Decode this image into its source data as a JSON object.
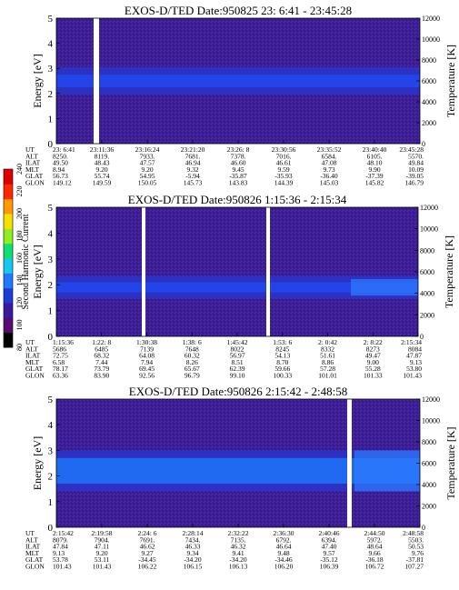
{
  "figure": {
    "colorbar": {
      "label": "Second Harmonic Current",
      "ticks": [
        "80",
        "100",
        "120",
        "140",
        "160",
        "180",
        "200",
        "220",
        "240"
      ],
      "colors": [
        "#000000",
        "#5a0c6e",
        "#3a1aa0",
        "#1f3cd8",
        "#1f78ff",
        "#18c8f0",
        "#10e070",
        "#90ee20",
        "#f6e000",
        "#ff9a00",
        "#ff2800",
        "#e00000"
      ]
    }
  },
  "chart_data": [
    {
      "type": "heatmap",
      "title": "EXOS-D/TED   Date:950825  23: 6:41 - 23:45:28",
      "ylabel": "Energy [eV]",
      "y2label": "Temperature [K]",
      "ylim": [
        0,
        5
      ],
      "y2lim": [
        0,
        12000
      ],
      "yticks": [
        "0",
        "1",
        "2",
        "3",
        "4",
        "5"
      ],
      "y2ticks": [
        "0",
        "2000",
        "4000",
        "6000",
        "8000",
        "10000",
        "12000"
      ],
      "band": {
        "center_eV": 2.5,
        "strong_halfwidth_eV": 0.25,
        "weak_halfwidth_eV": 0.55
      },
      "gaps": [
        {
          "start_frac": 0.0,
          "end_frac": 0.0
        }
      ],
      "table_labels": [
        "UT",
        "ALT",
        "ILAT",
        "MLT",
        "GLAT",
        "GLON"
      ],
      "table_columns": [
        [
          "23: 6:41",
          "8250.",
          "49.50",
          "8.94",
          "56.73",
          "149.12"
        ],
        [
          "23:11:36",
          "8119.",
          "48.43",
          "9.20",
          "55.74",
          "149.59"
        ],
        [
          "23:16:24",
          "7933.",
          "47.57",
          "9.20",
          "54.95",
          "150.05"
        ],
        [
          "23:21:20",
          "7681.",
          "46.94",
          "9.32",
          "-5.94",
          "145.73"
        ],
        [
          "23:26: 8",
          "7378.",
          "46.60",
          "9.45",
          "-35.87",
          "143.83"
        ],
        [
          "23:30:56",
          "7016.",
          "46.61",
          "9.59",
          "-35.93",
          "144.39"
        ],
        [
          "23:35:52",
          "6584.",
          "47.08",
          "9.73",
          "-36.40",
          "145.03"
        ],
        [
          "23:40:40",
          "6105.",
          "48.10",
          "9.90",
          "-37.39",
          "145.82"
        ],
        [
          "23:45:28",
          "5570.",
          "49.84",
          "10.09",
          "-39.05",
          "146.79"
        ]
      ]
    },
    {
      "type": "heatmap",
      "title": "EXOS-D/TED   Date:950826   1:15:36 - 2:15:34",
      "ylabel": "Energy [eV]",
      "y2label": "Temperature [K]",
      "ylim": [
        0,
        5
      ],
      "y2lim": [
        0,
        12000
      ],
      "yticks": [
        "0",
        "1",
        "2",
        "3",
        "4",
        "5"
      ],
      "y2ticks": [
        "0",
        "2000",
        "4000",
        "6000",
        "8000",
        "10000",
        "12000"
      ],
      "band": {
        "center_eV": 1.9,
        "strong_halfwidth_eV": 0.2,
        "weak_halfwidth_eV": 0.45
      },
      "table_labels": [
        "UT",
        "ALT",
        "ILAT",
        "MLT",
        "GLAT",
        "GLON"
      ],
      "table_columns": [
        [
          "1:15:36",
          "5686",
          "72.75",
          "6.58",
          "78.17",
          "63.36"
        ],
        [
          "1:22: 8",
          "6485",
          "68.32",
          "7.44",
          "73.79",
          "83.90"
        ],
        [
          "1:30:38",
          "7139",
          "64.08",
          "7.94",
          "69.45",
          "92.56"
        ],
        [
          "1:38: 6",
          "7648",
          "60.32",
          "8.26",
          "65.67",
          "96.79"
        ],
        [
          "1:45:42",
          "8022",
          "56.97",
          "8.51",
          "62.39",
          "99.10"
        ],
        [
          "1:53: 6",
          "8245",
          "54.13",
          "8.70",
          "59.66",
          "100.33"
        ],
        [
          "2: 0:42",
          "8332",
          "51.61",
          "8.86",
          "57.28",
          "101.01"
        ],
        [
          "2: 8:22",
          "8273",
          "49.47",
          "9.00",
          "55.28",
          "101.33"
        ],
        [
          "2:15:34",
          "8084",
          "47.87",
          "9.13",
          "53.80",
          "101.43"
        ]
      ]
    },
    {
      "type": "heatmap",
      "title": "EXOS-D/TED   Date:950826   2:15:42 - 2:48:58",
      "ylabel": "Energy [eV]",
      "y2label": "Temperature [K]",
      "ylim": [
        0,
        5
      ],
      "y2lim": [
        0,
        12000
      ],
      "yticks": [
        "0",
        "1",
        "2",
        "3",
        "4",
        "5"
      ],
      "y2ticks": [
        "0",
        "2000",
        "4000",
        "6000",
        "8000",
        "10000",
        "12000"
      ],
      "band": {
        "center_eV": 2.2,
        "strong_halfwidth_eV": 0.5,
        "weak_halfwidth_eV": 0.8
      },
      "table_labels": [
        "UT",
        "ALT",
        "ILAT",
        "MLT",
        "GLAT",
        "GLON"
      ],
      "table_columns": [
        [
          "2:15:42",
          "8079.",
          "47.84",
          "9.13",
          "53.78",
          "101.43"
        ],
        [
          "2:19:58",
          "7904.",
          "47.11",
          "9.20",
          "53.11",
          "101.43"
        ],
        [
          "2:24: 6",
          "7691.",
          "46.62",
          "9.27",
          "-34.45",
          "106.22"
        ],
        [
          "2:28:14",
          "7434.",
          "46.33",
          "9.34",
          "-34.20",
          "106.15"
        ],
        [
          "2:32:22",
          "7135.",
          "46.32",
          "9.41",
          "-34.20",
          "106.13"
        ],
        [
          "2:36:30",
          "6792.",
          "46.64",
          "9.48",
          "-34.46",
          "106.20"
        ],
        [
          "2:40:46",
          "6394.",
          "47.40",
          "9.57",
          "-35.12",
          "106.39"
        ],
        [
          "2:44:50",
          "5972.",
          "48.64",
          "9.66",
          "-36.18",
          "106.72"
        ],
        [
          "2:48:58",
          "5503.",
          "50.53",
          "9.76",
          "-37.81",
          "107.27"
        ]
      ]
    }
  ]
}
